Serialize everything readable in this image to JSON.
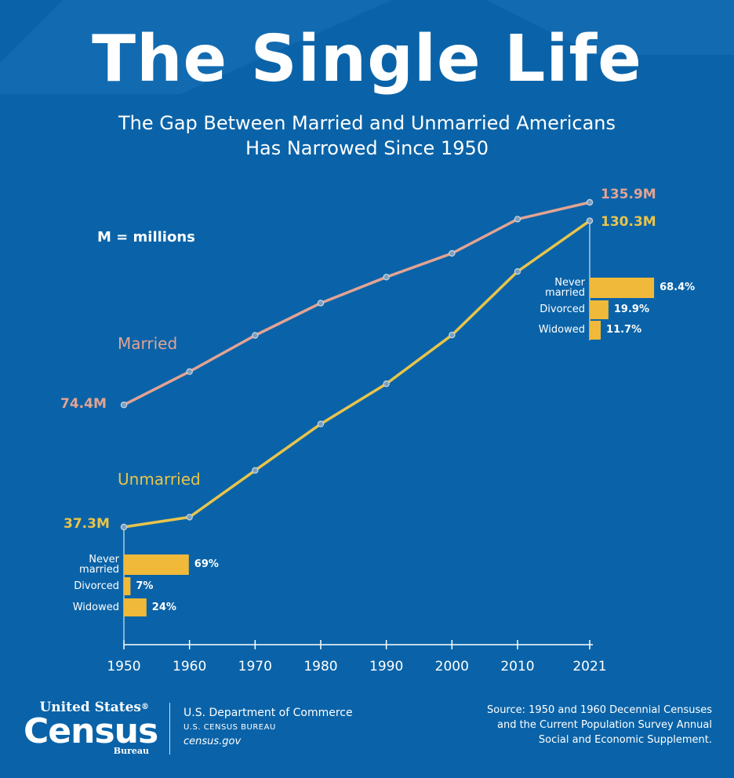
{
  "title": "The Single Life",
  "subtitle_line1": "The Gap Between Married and Unmarried Americans",
  "subtitle_line2": "Has Narrowed Since 1950",
  "units_note": "M = millions",
  "colors": {
    "background": "#0a63a8",
    "married": "#e3a393",
    "unmarried": "#e9c44a",
    "bars": "#f0b93a",
    "text": "#ffffff"
  },
  "chart_data": {
    "type": "line",
    "title": "The Single Life",
    "subtitle": "The Gap Between Married and Unmarried Americans Has Narrowed Since 1950",
    "x": [
      1950,
      1960,
      1970,
      1980,
      1990,
      2000,
      2010,
      2021
    ],
    "tick_labels": [
      "1950",
      "1960",
      "1970",
      "1980",
      "1990",
      "2000",
      "2010",
      "2021"
    ],
    "ylim": [
      30,
      140
    ],
    "yunit": "millions",
    "series": [
      {
        "name": "Married",
        "values": [
          74.4,
          84.5,
          95.5,
          105.3,
          113.2,
          120.4,
          130.8,
          135.9
        ],
        "start_label": "74.4M",
        "end_label": "135.9M"
      },
      {
        "name": "Unmarried",
        "values": [
          37.3,
          40.3,
          54.5,
          68.6,
          80.8,
          95.6,
          114.9,
          130.3
        ],
        "start_label": "37.3M",
        "end_label": "130.3M"
      }
    ],
    "unmarried_breakdown": {
      "1950": [
        {
          "category_line1": "Never",
          "category_line2": "married",
          "percent": 69,
          "label": "69%"
        },
        {
          "category_line1": "Divorced",
          "category_line2": "",
          "percent": 7,
          "label": "7%"
        },
        {
          "category_line1": "Widowed",
          "category_line2": "",
          "percent": 24,
          "label": "24%"
        }
      ],
      "2021": [
        {
          "category_line1": "Never",
          "category_line2": "married",
          "percent": 68.4,
          "label": "68.4%"
        },
        {
          "category_line1": "Divorced",
          "category_line2": "",
          "percent": 19.9,
          "label": "19.9%"
        },
        {
          "category_line1": "Widowed",
          "category_line2": "",
          "percent": 11.7,
          "label": "11.7%"
        }
      ]
    }
  },
  "footer": {
    "logo_top": "United States",
    "logo_reg": "®",
    "logo_main": "Census",
    "logo_bottom": "Bureau",
    "dept_line1": "U.S. Department of Commerce",
    "dept_line2": "U.S. CENSUS BUREAU",
    "dept_line3": "census.gov",
    "source_line1": "Source: 1950 and 1960 Decennial Censuses",
    "source_line2": "and the Current Population Survey Annual",
    "source_line3": "Social and Economic Supplement."
  }
}
